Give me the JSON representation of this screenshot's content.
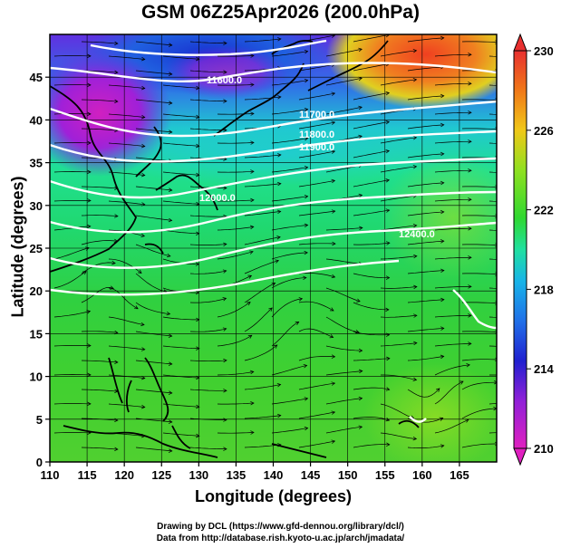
{
  "title": "GSM 06Z25Apr2026 (200.0hPa)",
  "xaxis": {
    "label": "Longitude (degrees)",
    "ticks": [
      "110",
      "115",
      "120",
      "125",
      "130",
      "135",
      "140",
      "145",
      "150",
      "155",
      "160",
      "165"
    ]
  },
  "yaxis": {
    "label": "Latitude  (degrees)",
    "ticks": [
      "0",
      "5",
      "10",
      "15",
      "20",
      "25",
      "30",
      "35",
      "40",
      "45"
    ]
  },
  "colorbar": {
    "ticks": [
      "210",
      "214",
      "218",
      "222",
      "226",
      "230"
    ],
    "colors": [
      "#e020c0",
      "#7a20e0",
      "#1830d0",
      "#18b4e8",
      "#20e0a0",
      "#30d830",
      "#90e020",
      "#f0c818",
      "#f07818",
      "#e83030"
    ]
  },
  "contour_labels": [
    "11600.0",
    "11700.0",
    "11800.0",
    "11900.0",
    "12000.0",
    "12400.0"
  ],
  "credits": {
    "line1": "Drawing by DCL (https://www.gfd-dennou.org/library/dcl/)",
    "line2": "Data from http://database.rish.kyoto-u.ac.jp/arch/jmadata/"
  }
}
